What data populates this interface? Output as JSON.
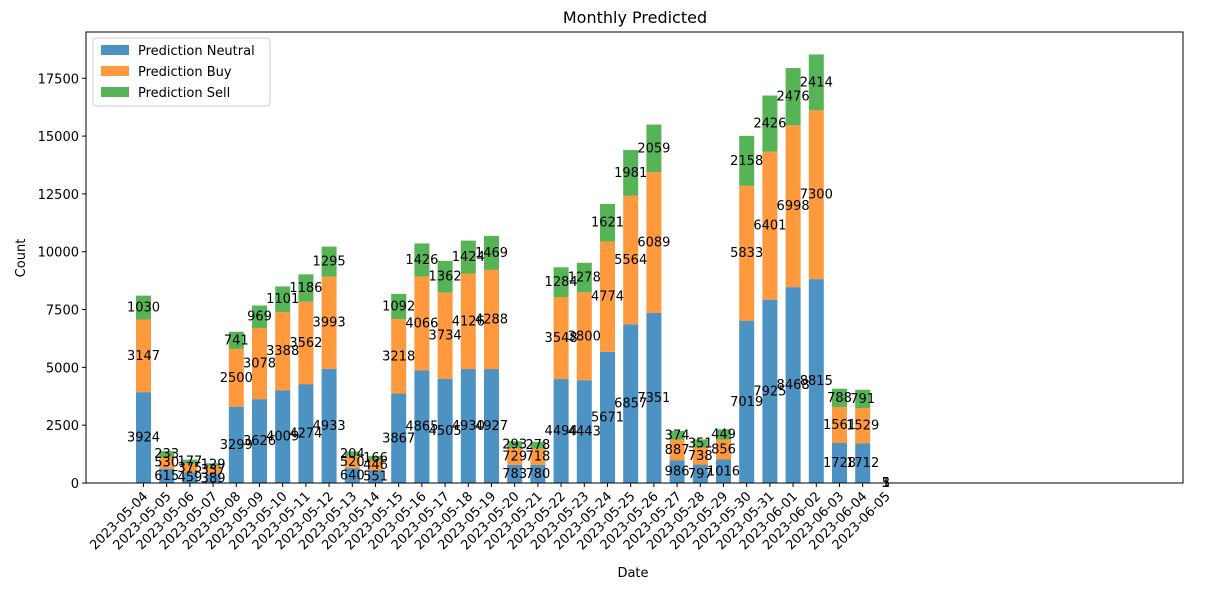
{
  "chart_data": {
    "type": "bar",
    "stacked": true,
    "title": "Monthly Predicted",
    "xlabel": "Date",
    "ylabel": "Count",
    "ylim": [
      0,
      19500
    ],
    "yticks": [
      0,
      2500,
      5000,
      7500,
      10000,
      12500,
      15000,
      17500
    ],
    "grid": false,
    "legend_position": "top-left",
    "categories": [
      "2023-05-04",
      "2023-05-05",
      "2023-05-06",
      "2023-05-07",
      "2023-05-08",
      "2023-05-09",
      "2023-05-10",
      "2023-05-11",
      "2023-05-12",
      "2023-05-13",
      "2023-05-14",
      "2023-05-15",
      "2023-05-16",
      "2023-05-17",
      "2023-05-18",
      "2023-05-19",
      "2023-05-20",
      "2023-05-21",
      "2023-05-22",
      "2023-05-23",
      "2023-05-24",
      "2023-05-25",
      "2023-05-26",
      "2023-05-27",
      "2023-05-28",
      "2023-05-29",
      "2023-05-30",
      "2023-05-31",
      "2023-06-01",
      "2023-06-02",
      "2023-06-03",
      "2023-06-04",
      "2023-06-05"
    ],
    "series": [
      {
        "name": "Prediction Neutral",
        "color": "#1f77b4",
        "values": [
          3924,
          615,
          459,
          389,
          3299,
          3626,
          4009,
          4274,
          4933,
          640,
          551,
          3867,
          4865,
          4505,
          4930,
          4927,
          783,
          780,
          4494,
          4443,
          5671,
          6857,
          7351,
          986,
          797,
          1016,
          7019,
          7925,
          8468,
          8815,
          1728,
          1712,
          3
        ]
      },
      {
        "name": "Prediction Buy",
        "color": "#ff7f0e",
        "values": [
          3147,
          530,
          375,
          337,
          2500,
          3078,
          3388,
          3562,
          3993,
          520,
          446,
          3218,
          4066,
          3734,
          4126,
          4288,
          729,
          718,
          3548,
          3800,
          4774,
          5564,
          6089,
          887,
          738,
          856,
          5833,
          6401,
          6998,
          7300,
          1561,
          1529,
          5
        ]
      },
      {
        "name": "Prediction Sell",
        "color": "#2ca02c",
        "values": [
          1030,
          233,
          177,
          129,
          741,
          969,
          1101,
          1186,
          1295,
          204,
          166,
          1092,
          1426,
          1362,
          1424,
          1469,
          293,
          278,
          1284,
          1278,
          1621,
          1981,
          2059,
          374,
          351,
          449,
          2158,
          2426,
          2476,
          2414,
          788,
          791,
          1
        ]
      }
    ]
  }
}
